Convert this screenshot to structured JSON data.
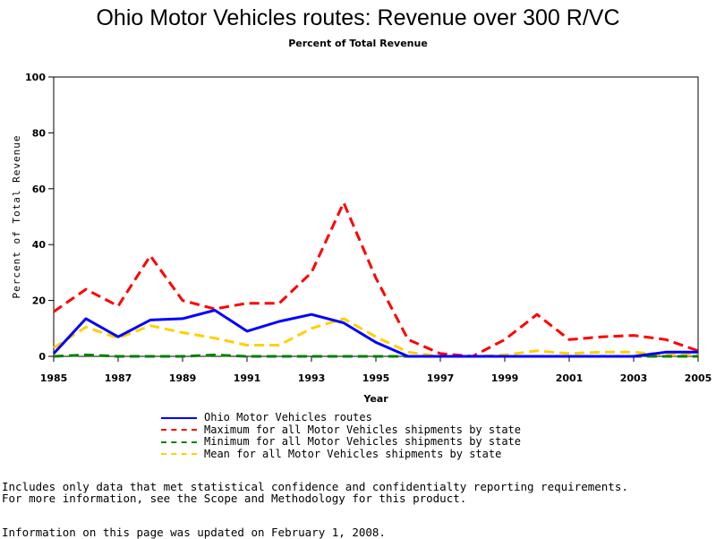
{
  "chart_data": {
    "type": "line",
    "title": "Ohio Motor Vehicles routes: Revenue over 300 R/VC",
    "subtitle": "Percent of Total Revenue",
    "xlabel": "Year",
    "ylabel": "Percent of Total Revenue",
    "xlim": [
      1985,
      2005
    ],
    "ylim": [
      0,
      100
    ],
    "xticks": [
      1985,
      1987,
      1989,
      1991,
      1993,
      1995,
      1997,
      1999,
      2001,
      2003,
      2005
    ],
    "yticks": [
      0,
      20,
      40,
      60,
      80,
      100
    ],
    "x": [
      1985,
      1986,
      1987,
      1988,
      1989,
      1990,
      1991,
      1992,
      1993,
      1994,
      1995,
      1996,
      1997,
      1998,
      1999,
      2000,
      2001,
      2002,
      2003,
      2004,
      2005
    ],
    "series": [
      {
        "name": "Ohio Motor Vehicles routes",
        "color": "#0000ff",
        "dash": "solid",
        "values": [
          1,
          13.5,
          7,
          13,
          13.5,
          16.5,
          9,
          12.5,
          15,
          12,
          5,
          0,
          0,
          0,
          0,
          0,
          0,
          0,
          0,
          1.5,
          1.5
        ]
      },
      {
        "name": "Maximum for all Motor Vehicles shipments by state",
        "color": "#ff0000",
        "dash": "dashed",
        "values": [
          16,
          24,
          18,
          36,
          20,
          17,
          19,
          19,
          30,
          55,
          28,
          6,
          1,
          0,
          6,
          15,
          6,
          7,
          7.5,
          6,
          2
        ]
      },
      {
        "name": "Minimum for all Motor Vehicles shipments by state",
        "color": "#008000",
        "dash": "dashed",
        "values": [
          0,
          0.5,
          0,
          0,
          0,
          0.5,
          0,
          0,
          0,
          0,
          0,
          0,
          0,
          0,
          0,
          0,
          0,
          0,
          0,
          0,
          0
        ]
      },
      {
        "name": "Mean for all Motor Vehicles shipments by state",
        "color": "#ffd000",
        "dash": "dashed",
        "values": [
          3,
          10.5,
          6.5,
          11,
          8.5,
          6.5,
          4,
          4,
          10,
          13.5,
          7,
          1.5,
          0,
          0,
          0.5,
          2,
          1,
          1.5,
          1.5,
          0.5,
          0.5
        ]
      }
    ]
  },
  "footnotes": {
    "line1": "Includes only data that met statistical confidence and confidentialty reporting requirements.",
    "line2": "For more information, see the Scope and Methodology for this product.",
    "line3": "Information on this page was updated on February 1, 2008."
  }
}
